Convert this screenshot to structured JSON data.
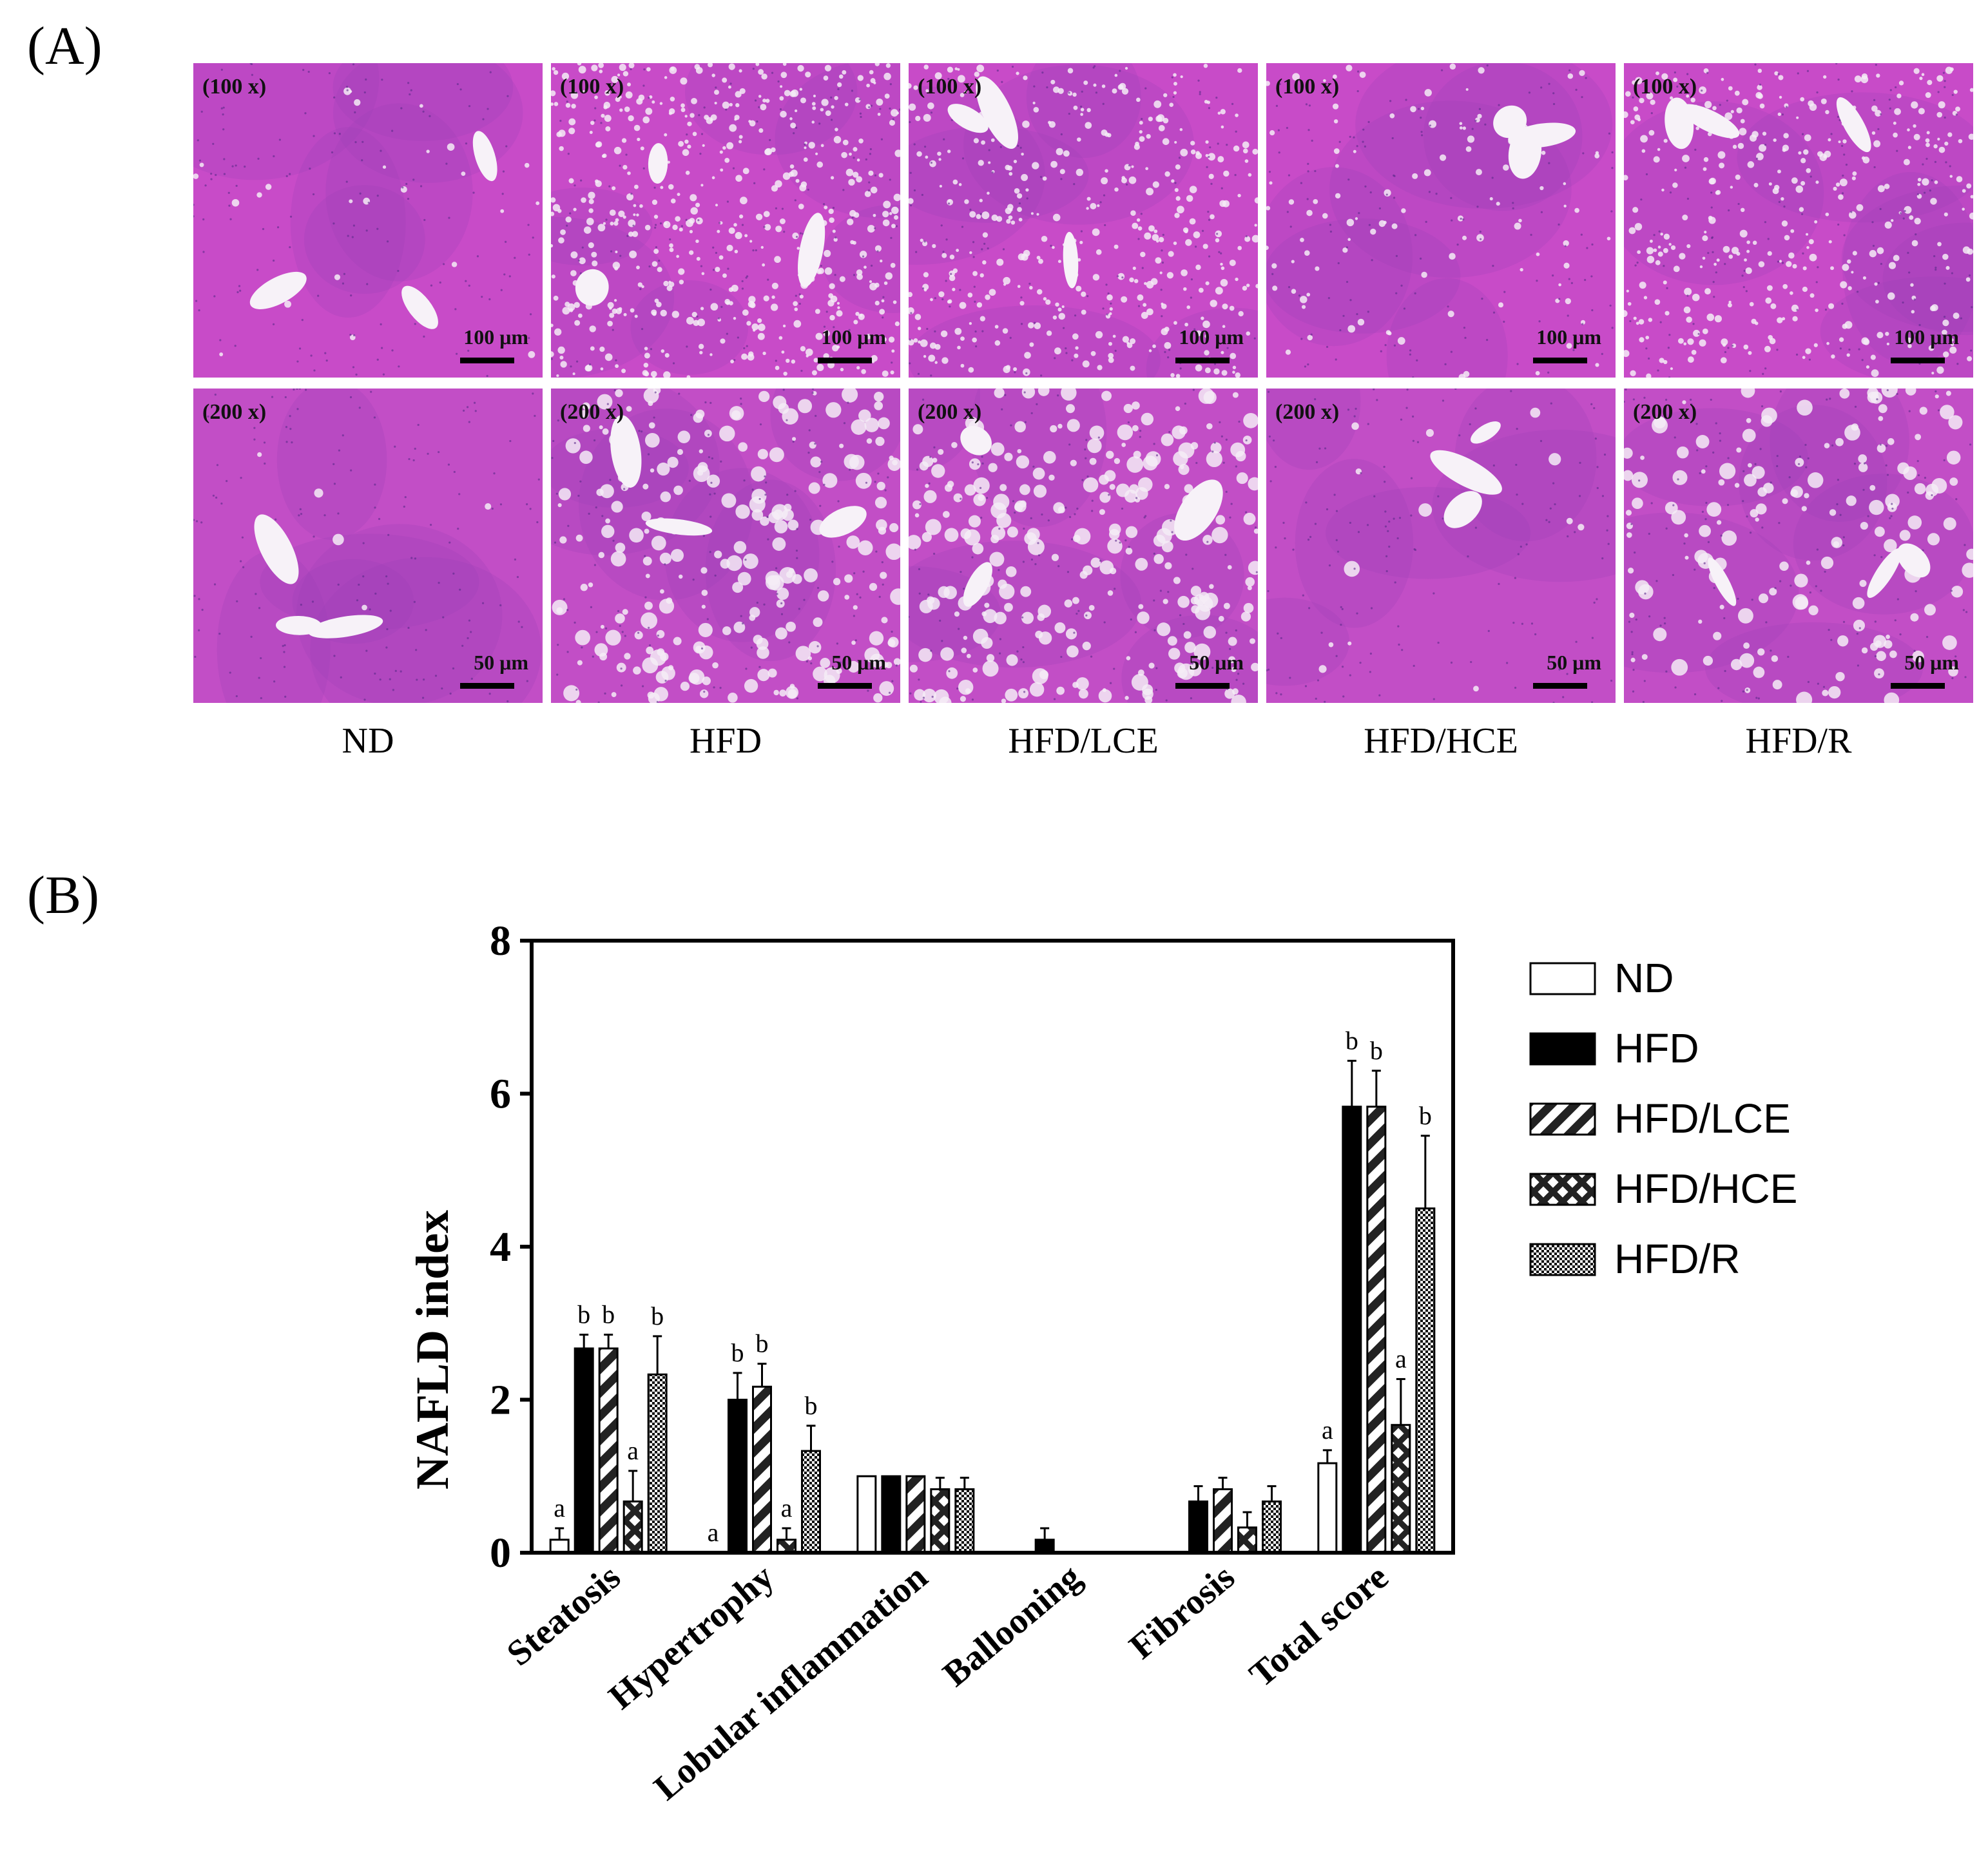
{
  "panels": {
    "a_label": "(A)",
    "b_label": "(B)"
  },
  "micrographs": {
    "groups": [
      "ND",
      "HFD",
      "HFD/LCE",
      "HFD/HCE",
      "HFD/R"
    ],
    "rows": [
      {
        "magnification": "(100 x)",
        "scale": "100 μm"
      },
      {
        "magnification": "(200 x)",
        "scale": "50 μm"
      }
    ]
  },
  "colors": {
    "stain_base": "#c84bc8",
    "stain_dark": "#9a3fb6",
    "vacuole": "#f4ecf6",
    "bar_dark": "#000000"
  },
  "chart_data": {
    "type": "bar",
    "categories": [
      "Steatosis",
      "Hypertrophy",
      "Lobular inflammation",
      "Ballooning",
      "Fibrosis",
      "Total score"
    ],
    "ylabel": "NAFLD index",
    "ylim": [
      0,
      8
    ],
    "yticks": [
      "0",
      "2",
      "4",
      "6",
      "8"
    ],
    "grid": false,
    "legend_position": "right",
    "series": [
      {
        "name": "ND",
        "pattern": "open",
        "values": [
          0.17,
          0,
          1.0,
          0,
          0,
          1.17
        ],
        "errors": [
          0.15,
          0,
          0,
          0,
          0,
          0.17
        ],
        "letters": [
          "a",
          "a",
          "",
          "",
          "",
          "a"
        ]
      },
      {
        "name": "HFD",
        "pattern": "solid",
        "values": [
          2.67,
          2.0,
          1.0,
          0.17,
          0.67,
          5.83
        ],
        "errors": [
          0.18,
          0.35,
          0,
          0.15,
          0.2,
          0.6
        ],
        "letters": [
          "b",
          "b",
          "",
          "",
          "",
          "b"
        ]
      },
      {
        "name": "HFD/LCE",
        "pattern": "stripes",
        "values": [
          2.67,
          2.17,
          1.0,
          0,
          0.83,
          5.83
        ],
        "errors": [
          0.18,
          0.3,
          0,
          0,
          0.15,
          0.47
        ],
        "letters": [
          "b",
          "b",
          "",
          "",
          "",
          "b"
        ]
      },
      {
        "name": "HFD/HCE",
        "pattern": "crosshatch",
        "values": [
          0.67,
          0.17,
          0.83,
          0,
          0.33,
          1.67
        ],
        "errors": [
          0.4,
          0.15,
          0.15,
          0,
          0.2,
          0.6
        ],
        "letters": [
          "a",
          "a",
          "",
          "",
          "",
          "a"
        ]
      },
      {
        "name": "HFD/R",
        "pattern": "checker",
        "values": [
          2.33,
          1.33,
          0.83,
          0,
          0.67,
          4.5
        ],
        "errors": [
          0.5,
          0.33,
          0.15,
          0,
          0.2,
          0.95
        ],
        "letters": [
          "b",
          "b",
          "",
          "",
          "",
          "b"
        ]
      }
    ]
  }
}
